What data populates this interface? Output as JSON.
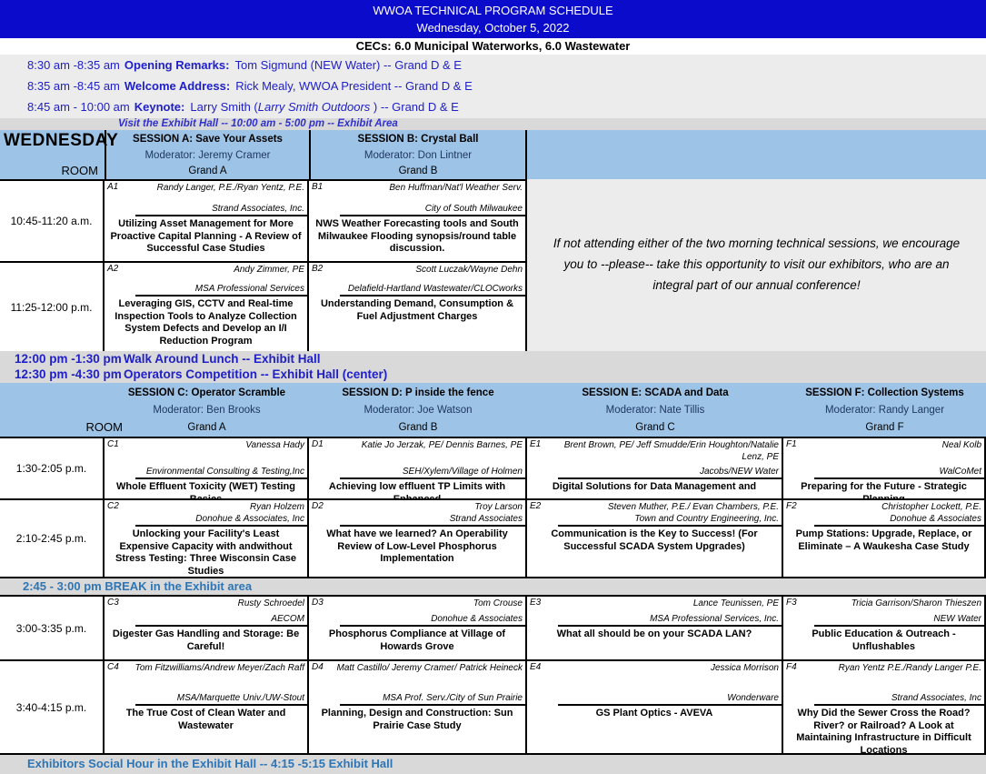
{
  "header": {
    "title": "WWOA TECHNICAL PROGRAM SCHEDULE",
    "date": "Wednesday, October 5, 2022"
  },
  "cecs_line": "CECs: 6.0 Municipal Waterworks, 6.0 Wastewater",
  "opening": [
    {
      "time": "8:30 am -8:35 am",
      "label": "Opening Remarks:",
      "detail": "Tom Sigmund (NEW Water) --  Grand D & E"
    },
    {
      "time": "8:35 am -8:45 am",
      "label": "Welcome Address:",
      "detail": "Rick Mealy, WWOA President  --  Grand D & E"
    },
    {
      "time": "8:45 am - 10:00 am",
      "label": "Keynote:",
      "pre": "Larry Smith (",
      "it": "Larry Smith Outdoors",
      "post": " )  -- Grand D & E"
    }
  ],
  "visit_line": "Visit the Exhibit Hall --  10:00 am - 5:00 pm -- Exhibit Area",
  "morning": {
    "day_label": "WEDNESDAY",
    "room_label": "ROOM",
    "sessions": [
      {
        "name": "SESSION A:  Save Your Assets",
        "moderator": "Moderator:  Jeremy Cramer",
        "room": "Grand A"
      },
      {
        "name": "SESSION B:  Crystal Ball",
        "moderator": "Moderator:  Don Lintner",
        "room": "Grand B"
      }
    ],
    "rows": [
      {
        "time": "10:45-11:20 a.m.",
        "cells": [
          {
            "code": "A1",
            "speakers": "Randy Langer, P.E./Ryan Yentz, P.E.",
            "org": "Strand Associates, Inc.",
            "title": "Utilizing Asset Management for More Proactive Capital Planning - A Review of Successful Case Studies"
          },
          {
            "code": "B1",
            "speakers": "Ben Huffman/Nat'l Weather Serv.",
            "org": "City of South Milwaukee",
            "title": "NWS Weather Forecasting tools and South Milwaukee Flooding synopsis/round table discussion."
          }
        ]
      },
      {
        "time": "11:25-12:00 p.m.",
        "cells": [
          {
            "code": "A2",
            "speakers": "Andy Zimmer, PE",
            "org": "MSA Professional Services",
            "title": "Leveraging GIS, CCTV and Real-time Inspection Tools to Analyze Collection System Defects and Develop an I/I Reduction Program"
          },
          {
            "code": "B2",
            "speakers": "Scott Luczak/Wayne Dehn",
            "org": "Delafield-Hartland Wastewater/CLOCworks",
            "title": "Understanding Demand, Consumption & Fuel Adjustment Charges"
          }
        ]
      }
    ]
  },
  "note": "If not attending either of the two morning technical sessions, we encourage you to --please-- take this opportunity to visit our exhibitors, who are an integral part of our annual conference!",
  "lunch": [
    {
      "time": "12:00 pm -1:30 pm",
      "label": "Walk Around Lunch  -- Exhibit Hall"
    },
    {
      "time": "12:30 pm -4:30 pm",
      "label": "Operators Competition -- Exhibit Hall (center)"
    }
  ],
  "afternoon": {
    "room_label": "ROOM",
    "sessions": [
      {
        "name": "SESSION C: Operator Scramble",
        "moderator": "Moderator:  Ben Brooks",
        "room": "Grand A"
      },
      {
        "name": "SESSION D: P inside the fence",
        "moderator": "Moderator: Joe Watson",
        "room": "Grand B"
      },
      {
        "name": "SESSION E:  SCADA and Data",
        "moderator": "Moderator:  Nate Tillis",
        "room": "Grand C"
      },
      {
        "name": "SESSION F:  Collection Systems",
        "moderator": "Moderator:  Randy Langer",
        "room": "Grand F"
      }
    ],
    "rows": [
      {
        "time": "1:30-2:05 p.m.",
        "cells": [
          {
            "code": "C1",
            "speakers": "Vanessa Hady",
            "org": "Environmental Consulting & Testing,Inc",
            "title": "Whole Effluent Toxicity (WET) Testing Basics"
          },
          {
            "code": "D1",
            "speakers": "Katie Jo Jerzak, PE/ Dennis Barnes, PE",
            "org": "SEH/Xylem/Village of Holmen",
            "title": "Achieving low effluent TP Limits with Enhanced"
          },
          {
            "code": "E1",
            "speakers": "Brent Brown, PE/ Jeff Smudde/Erin Houghton/Natalie Lenz, PE",
            "org": "Jacobs/NEW Water",
            "title": "Digital Solutions for Data Management and"
          },
          {
            "code": "F1",
            "speakers": "Neal Kolb",
            "org": "WalCoMet",
            "title": "Preparing for the Future - Strategic Planning"
          }
        ]
      },
      {
        "time": "2:10-2:45 p.m.",
        "cells": [
          {
            "code": "C2",
            "speakers": "Ryan Holzem",
            "org": "Donohue & Associates, Inc",
            "title": "Unlocking your Facility's Least Expensive Capacity with andwithout Stress Testing: Three Wisconsin Case Studies"
          },
          {
            "code": "D2",
            "speakers": "Troy Larson",
            "org": "Strand Associates",
            "title": "What have we learned?  An Operability Review of Low-Level Phosphorus Implementation"
          },
          {
            "code": "E2",
            "speakers": "Steven Muther, P.E./ Evan Chambers, P.E.",
            "org": "Town and Country Engineering, Inc.",
            "title": "Communication is the Key to Success! (For Successful SCADA System Upgrades)"
          },
          {
            "code": "F2",
            "speakers": "Christopher Lockett, P.E.",
            "org": "Donohue & Associates",
            "title": "Pump Stations:  Upgrade, Replace, or Eliminate – A Waukesha Case Study"
          }
        ]
      }
    ],
    "break_line": "2:45 - 3:00 pm BREAK in the Exhibit area",
    "rows2": [
      {
        "time": "3:00-3:35 p.m.",
        "cells": [
          {
            "code": "C3",
            "speakers": "Rusty Schroedel",
            "org": "AECOM",
            "title": "Digester Gas Handling and Storage: Be Careful!"
          },
          {
            "code": "D3",
            "speakers": "Tom Crouse",
            "org": "Donohue & Associates",
            "title": "Phosphorus Compliance at Village of Howards Grove"
          },
          {
            "code": "E3",
            "speakers": "Lance Teunissen, PE",
            "org": "MSA Professional Services, Inc.",
            "title": "What all should be on your SCADA LAN?"
          },
          {
            "code": "F3",
            "speakers": "Tricia Garrison/Sharon Thieszen",
            "org": "NEW Water",
            "title": "Public Education & Outreach - Unflushables"
          }
        ]
      },
      {
        "time": "3:40-4:15 p.m.",
        "cells": [
          {
            "code": "C4",
            "speakers": "Tom Fitzwilliams/Andrew Meyer/Zach Raff",
            "org": "MSA/Marquette Univ./UW-Stout",
            "title": "The True Cost of Clean Water and Wastewater"
          },
          {
            "code": "D4",
            "speakers": "Matt Castillo/ Jeremy Cramer/ Patrick Heineck",
            "org": "MSA Prof. Serv./City of Sun Prairie",
            "title": "Planning, Design and Construction: Sun Prairie Case Study"
          },
          {
            "code": "E4",
            "speakers": "Jessica Morrison",
            "org": "Wonderware",
            "title": "GS Plant Optics - AVEVA"
          },
          {
            "code": "F4",
            "speakers": "Ryan Yentz P.E./Randy Langer P.E.",
            "org": "Strand Associates, Inc",
            "title": "Why Did the Sewer Cross the Road? River? or Railroad? A Look at Maintaining Infrastructure in Difficult Locations"
          }
        ]
      }
    ]
  },
  "social_line": "Exhibitors Social Hour in the Exhibit Hall -- 4:15 -5:15 Exhibit Hall",
  "colors": {
    "banner_blue": "#0b0bcb",
    "band_blue": "#9dc3e6",
    "band_gray": "#d9d9d9",
    "rows_gray": "#ececec",
    "text_blue": "#2020c8",
    "text_medium_blue": "#2e75b6"
  }
}
